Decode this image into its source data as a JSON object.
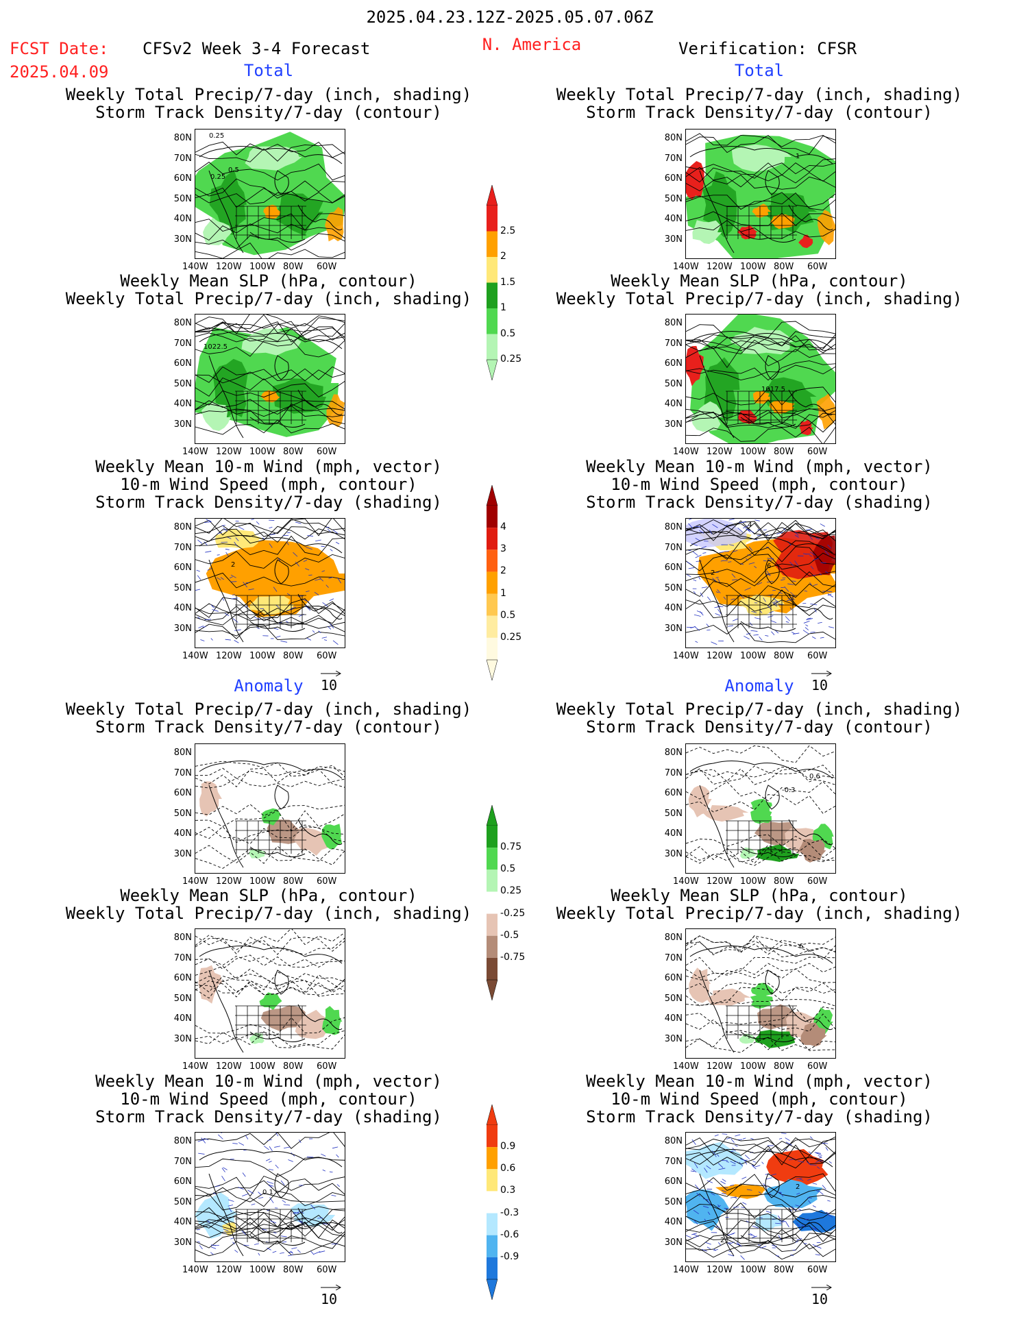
{
  "header": {
    "period": "2025.04.23.12Z-2025.05.07.06Z",
    "fcst_label": "FCST Date:",
    "fcst_date": "2025.04.09",
    "forecast_title": "CFSv2 Week 3-4 Forecast",
    "region": "N. America",
    "verification": "Verification: CFSR"
  },
  "section_labels": {
    "total": "Total",
    "anomaly": "Anomaly"
  },
  "panel_titles": {
    "precip_storm": [
      "Weekly Total Precip/7-day (inch, shading)",
      "Storm Track Density/7-day (contour)"
    ],
    "slp_precip": [
      "Weekly Mean SLP (hPa, contour)",
      "Weekly Total Precip/7-day (inch, shading)"
    ],
    "wind_storm": [
      "Weekly Mean 10-m Wind (mph, vector)",
      "10-m Wind Speed (mph, contour)",
      "Storm Track Density/7-day (shading)"
    ]
  },
  "axes": {
    "lat_ticks": [
      "80N",
      "70N",
      "60N",
      "50N",
      "40N",
      "30N"
    ],
    "lon_ticks": [
      "140W",
      "120W",
      "100W",
      "80W",
      "60W"
    ],
    "vector_ref": "10"
  },
  "contour_labels": {
    "f_precip_total": [
      "0.25",
      "0.5",
      "0.25"
    ],
    "f_slp_total": [
      "1022.5"
    ],
    "f_wind_total": [
      "2"
    ],
    "v_precip_total": [
      "1"
    ],
    "v_slp_total": [
      "1017.5"
    ],
    "v_wind_total": [
      "6",
      "2",
      "4"
    ],
    "v_precip_anom": [
      "-0.3",
      "0.6"
    ],
    "f_wind_anom": [
      "0.1"
    ],
    "v_wind_anom": [
      "2",
      "2"
    ],
    "v_slp_anom": [
      "6"
    ]
  },
  "colorbars": [
    {
      "name": "precip-total",
      "labels": [
        "2.5",
        "2",
        "1.5",
        "1",
        "0.5",
        "0.25"
      ],
      "colors": [
        "#e8201c",
        "#ffa000",
        "#ffe878",
        "#1ea01e",
        "#50d850",
        "#b4f5b4"
      ]
    },
    {
      "name": "storm-total",
      "labels": [
        "4",
        "3",
        "2",
        "1",
        "0.5",
        "0.25"
      ],
      "colors": [
        "#a00000",
        "#e01c10",
        "#ff6010",
        "#ffa000",
        "#ffc850",
        "#ffeca0",
        "#fffae0"
      ]
    },
    {
      "name": "precip-anom",
      "labels": [
        "0.75",
        "0.5",
        "0.25",
        "-0.25",
        "-0.5",
        "-0.75"
      ],
      "colors": [
        "#1ea01e",
        "#50d850",
        "#b4f5b4",
        "#ffffff",
        "#e6c4b4",
        "#b48c78",
        "#7a4a34"
      ]
    },
    {
      "name": "storm-anom",
      "labels": [
        "0.9",
        "0.6",
        "0.3",
        "-0.3",
        "-0.6",
        "-0.9"
      ],
      "colors": [
        "#f03c10",
        "#ffa000",
        "#ffe878",
        "#ffffff",
        "#b4e8ff",
        "#50b4f0",
        "#1e78dc"
      ]
    }
  ],
  "palette": {
    "precip_green": "#50d850",
    "precip_dark_green": "#1ea01e",
    "precip_light_green": "#b4f5b4",
    "precip_orange": "#ffa000",
    "precip_red": "#e8201c",
    "storm_orange": "#ffa000",
    "storm_light": "#ffe878",
    "anom_brown": "#b48c78",
    "anom_light_brown": "#e6c4b4",
    "anom_blue": "#50b4f0",
    "anom_light_blue": "#b4e8ff",
    "vector_blue": "#2030c0"
  }
}
